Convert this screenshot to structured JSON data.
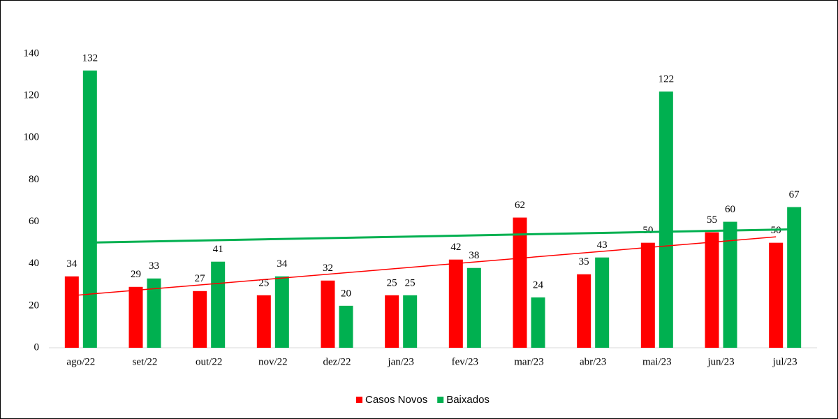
{
  "chart_data": {
    "type": "bar",
    "categories": [
      "ago/22",
      "set/22",
      "out/22",
      "nov/22",
      "dez/22",
      "jan/23",
      "fev/23",
      "mar/23",
      "abr/23",
      "mai/23",
      "jun/23",
      "jul/23"
    ],
    "series": [
      {
        "name": "Casos Novos",
        "color": "#ff0000",
        "values": [
          34,
          29,
          27,
          25,
          32,
          25,
          42,
          62,
          35,
          50,
          55,
          50
        ]
      },
      {
        "name": "Baixados",
        "color": "#00b050",
        "values": [
          132,
          33,
          41,
          34,
          20,
          25,
          38,
          24,
          43,
          122,
          60,
          67
        ]
      }
    ],
    "ylim": [
      0,
      140
    ],
    "yticks": [
      0,
      20,
      40,
      60,
      80,
      100,
      120,
      140
    ],
    "grid": false,
    "trendline": true,
    "legend": "bottom"
  }
}
